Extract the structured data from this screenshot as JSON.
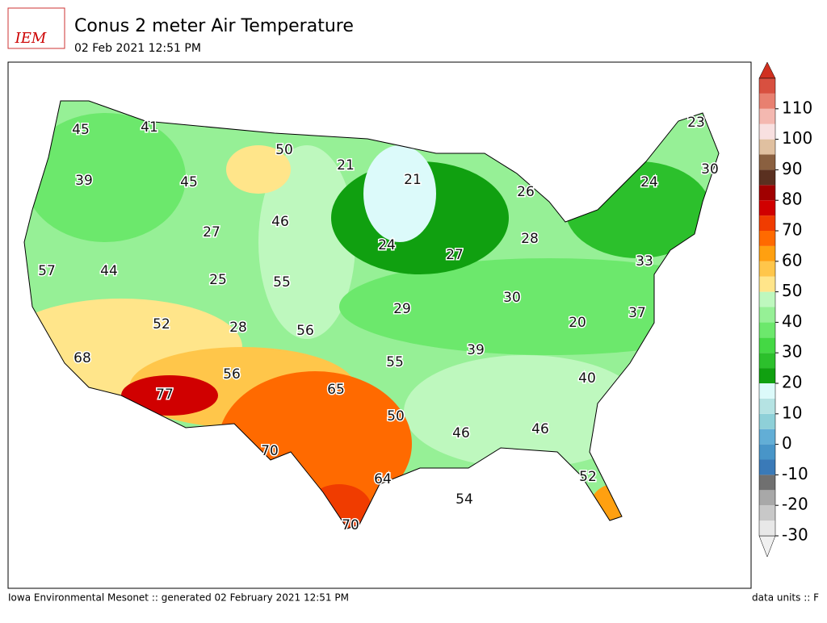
{
  "header": {
    "title": "Conus 2 meter Air Temperature",
    "subtitle": "02 Feb 2021 12:51 PM",
    "logo": "IEM"
  },
  "footer": {
    "left": "Iowa Environmental Mesonet :: generated 02 February 2021 12:51 PM",
    "right": "data units :: F"
  },
  "colorbar": {
    "lim": [
      -30,
      120
    ],
    "ticks": [
      -30,
      -20,
      -10,
      0,
      10,
      20,
      30,
      40,
      50,
      60,
      70,
      80,
      90,
      100,
      110
    ],
    "colors": [
      "#e8e8e8",
      "#c8c8c8",
      "#a8a8a8",
      "#707070",
      "#3a7ab8",
      "#4895c8",
      "#62aed6",
      "#8ed0d8",
      "#b5e3e3",
      "#dcfafa",
      "#10a010",
      "#2cc02c",
      "#44d844",
      "#6ce86c",
      "#96f096",
      "#bef8be",
      "#ffe58a",
      "#ffc64a",
      "#ffa010",
      "#ff6a00",
      "#f03c00",
      "#d00000",
      "#a00000",
      "#5a3020",
      "#8a6040",
      "#e0c0a0",
      "#f8e0e0",
      "#f4b8b0",
      "#e88070",
      "#d85040"
    ]
  },
  "labels": [
    45,
    41,
    50,
    21,
    21,
    23,
    30,
    39,
    45,
    24,
    26,
    46,
    27,
    28,
    24,
    27,
    57,
    44,
    25,
    55,
    33,
    30,
    29,
    37,
    52,
    28,
    56,
    20,
    39,
    68,
    55,
    40,
    56,
    65,
    77,
    50,
    46,
    46,
    70,
    52,
    64,
    54,
    70
  ]
}
